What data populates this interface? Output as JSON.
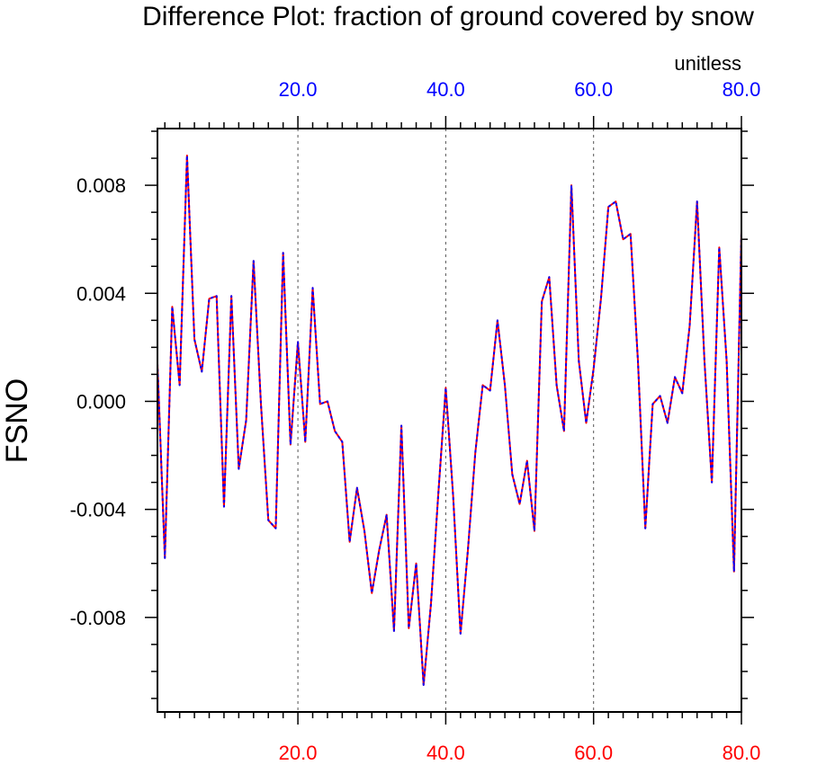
{
  "chart_data": {
    "type": "line",
    "title": "Difference Plot: fraction of ground covered by snow",
    "units_label": "unitless",
    "ylabel": "FSNO",
    "xlim": [
      1,
      80
    ],
    "ylim": [
      -0.0115,
      0.0101
    ],
    "y_ticks": [
      {
        "value": 0.008,
        "label": "0.008"
      },
      {
        "value": 0.004,
        "label": "0.004"
      },
      {
        "value": 0.0,
        "label": "0.000"
      },
      {
        "value": -0.004,
        "label": "-0.004"
      },
      {
        "value": -0.008,
        "label": "-0.008"
      }
    ],
    "y_minor_step": 0.001,
    "x_ticks_top": [
      {
        "value": 20,
        "label": "20.0"
      },
      {
        "value": 40,
        "label": "40.0"
      },
      {
        "value": 60,
        "label": "60.0"
      },
      {
        "value": 80,
        "label": "80.0"
      }
    ],
    "x_ticks_bottom": [
      {
        "value": 20,
        "label": "20.0"
      },
      {
        "value": 40,
        "label": "40.0"
      },
      {
        "value": 60,
        "label": "60.0"
      },
      {
        "value": 80,
        "label": "80.0"
      }
    ],
    "x_minor_step": 2,
    "grid": "vertical dashed at major x ticks",
    "series": [
      {
        "name": "series-red",
        "color": "#ff0000",
        "style": "solid",
        "x": [
          1,
          2,
          3,
          4,
          5,
          6,
          7,
          8,
          9,
          10,
          11,
          12,
          13,
          14,
          15,
          16,
          17,
          18,
          19,
          20,
          21,
          22,
          23,
          24,
          25,
          26,
          27,
          28,
          29,
          30,
          31,
          32,
          33,
          34,
          35,
          36,
          37,
          38,
          39,
          40,
          41,
          42,
          43,
          44,
          45,
          46,
          47,
          48,
          49,
          50,
          51,
          52,
          53,
          54,
          55,
          56,
          57,
          58,
          59,
          60,
          61,
          62,
          63,
          64,
          65,
          66,
          67,
          68,
          69,
          70,
          71,
          72,
          73,
          74,
          75,
          76,
          77,
          78,
          79,
          80
        ],
        "y": [
          0.0014,
          -0.0058,
          0.0035,
          0.0006,
          0.0091,
          0.0023,
          0.0011,
          0.0038,
          0.0039,
          -0.0039,
          0.0039,
          -0.0025,
          -0.0007,
          0.0052,
          -0.0001,
          -0.0044,
          -0.0047,
          0.0055,
          -0.0016,
          0.0022,
          -0.0015,
          0.0042,
          -0.0001,
          0.0,
          -0.0011,
          -0.0015,
          -0.0052,
          -0.0032,
          -0.0048,
          -0.0071,
          -0.0055,
          -0.0042,
          -0.0085,
          -0.0009,
          -0.0084,
          -0.006,
          -0.0105,
          -0.0075,
          -0.0034,
          0.0005,
          -0.0035,
          -0.0086,
          -0.0055,
          -0.0019,
          0.0006,
          0.0004,
          0.003,
          0.0006,
          -0.0027,
          -0.0038,
          -0.0022,
          -0.0048,
          0.0037,
          0.0046,
          0.0006,
          -0.0011,
          0.008,
          0.0015,
          -0.0008,
          0.0012,
          0.0038,
          0.0072,
          0.0074,
          0.006,
          0.0062,
          0.0015,
          -0.0047,
          -0.0001,
          0.0002,
          -0.0008,
          0.0009,
          0.0003,
          0.0028,
          0.0074,
          0.0015,
          -0.003,
          0.0057,
          0.0015,
          -0.0063,
          0.0063
        ]
      },
      {
        "name": "series-blue",
        "color": "#0000ff",
        "style": "dashed",
        "x": [
          1,
          2,
          3,
          4,
          5,
          6,
          7,
          8,
          9,
          10,
          11,
          12,
          13,
          14,
          15,
          16,
          17,
          18,
          19,
          20,
          21,
          22,
          23,
          24,
          25,
          26,
          27,
          28,
          29,
          30,
          31,
          32,
          33,
          34,
          35,
          36,
          37,
          38,
          39,
          40,
          41,
          42,
          43,
          44,
          45,
          46,
          47,
          48,
          49,
          50,
          51,
          52,
          53,
          54,
          55,
          56,
          57,
          58,
          59,
          60,
          61,
          62,
          63,
          64,
          65,
          66,
          67,
          68,
          69,
          70,
          71,
          72,
          73,
          74,
          75,
          76,
          77,
          78,
          79,
          80
        ],
        "y": [
          0.0014,
          -0.0058,
          0.0035,
          0.0006,
          0.0091,
          0.0023,
          0.0011,
          0.0038,
          0.0039,
          -0.0039,
          0.0039,
          -0.0025,
          -0.0007,
          0.0052,
          -0.0001,
          -0.0044,
          -0.0047,
          0.0055,
          -0.0016,
          0.0022,
          -0.0015,
          0.0042,
          -0.0001,
          0.0,
          -0.0011,
          -0.0015,
          -0.0052,
          -0.0032,
          -0.0048,
          -0.0071,
          -0.0055,
          -0.0042,
          -0.0085,
          -0.0009,
          -0.0084,
          -0.006,
          -0.0105,
          -0.0075,
          -0.0034,
          0.0005,
          -0.0035,
          -0.0086,
          -0.0055,
          -0.0019,
          0.0006,
          0.0004,
          0.003,
          0.0006,
          -0.0027,
          -0.0038,
          -0.0022,
          -0.0048,
          0.0037,
          0.0046,
          0.0006,
          -0.0011,
          0.008,
          0.0015,
          -0.0008,
          0.0012,
          0.0038,
          0.0072,
          0.0074,
          0.006,
          0.0062,
          0.0015,
          -0.0047,
          -0.0001,
          0.0002,
          -0.0008,
          0.0009,
          0.0003,
          0.0028,
          0.0074,
          0.0015,
          -0.003,
          0.0057,
          0.0015,
          -0.0063,
          0.0063
        ]
      }
    ]
  }
}
